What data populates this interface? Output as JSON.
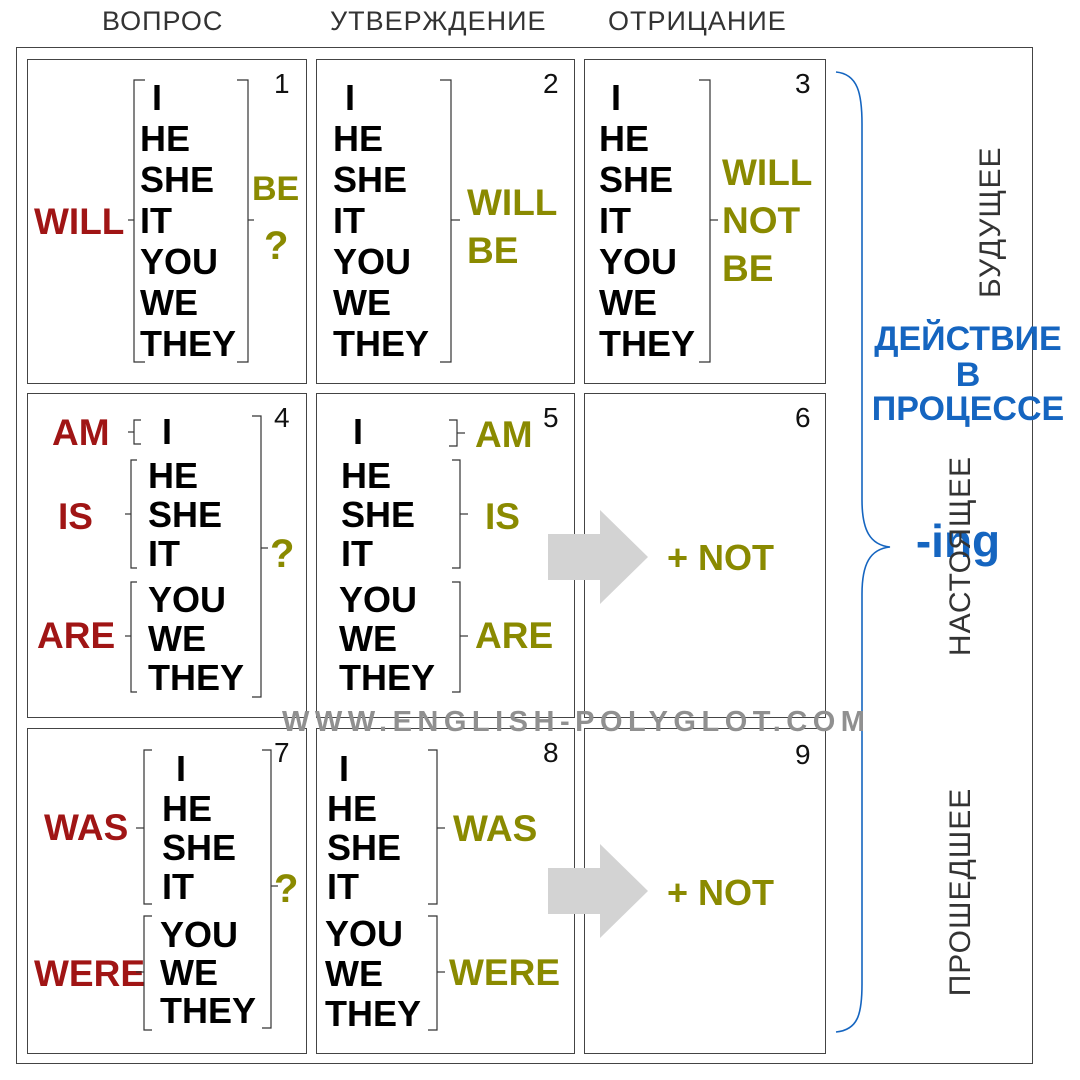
{
  "columns": [
    "ВОПРОС",
    "УТВЕРЖДЕНИЕ",
    "ОТРИЦАНИЕ"
  ],
  "rows": [
    "БУДУЩЕЕ",
    "НАСТОЯЩЕЕ",
    "ПРОШЕДШЕЕ"
  ],
  "summary": {
    "line1": "ДЕЙСТВИЕ",
    "line2": "В",
    "line3": "ПРОЦЕССЕ",
    "ending": "-ing"
  },
  "watermark": "WWW.ENGLISH-POLYGLOT.COM",
  "pronouns": [
    "I",
    "HE",
    "SHE",
    "IT",
    "YOU",
    "WE",
    "THEY"
  ],
  "cells": {
    "c1": {
      "number": "1",
      "aux": "WILL",
      "be": "BE",
      "mark": "?"
    },
    "c2": {
      "number": "2",
      "verb1": "WILL",
      "verb2": "BE"
    },
    "c3": {
      "number": "3",
      "verb1": "WILL",
      "verb2": "NOT",
      "verb3": "BE"
    },
    "c4": {
      "number": "4",
      "aux_am": "AM",
      "aux_is": "IS",
      "aux_are": "ARE",
      "mark": "?"
    },
    "c5": {
      "number": "5",
      "verb_am": "AM",
      "verb_is": "IS",
      "verb_are": "ARE"
    },
    "c6": {
      "number": "6",
      "neg": "+ NOT"
    },
    "c7": {
      "number": "7",
      "aux_was": "WAS",
      "aux_were": "WERE",
      "mark": "?"
    },
    "c8": {
      "number": "8",
      "verb_was": "WAS",
      "verb_were": "WERE"
    },
    "c9": {
      "number": "9",
      "neg": "+ NOT"
    }
  },
  "colors": {
    "question_aux": "#a01515",
    "statement_verb": "#8a8a00",
    "summary": "#1565c0",
    "arrow": "#d3d3d3"
  }
}
